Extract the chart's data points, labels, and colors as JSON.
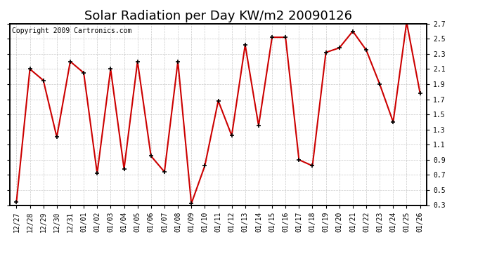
{
  "title": "Solar Radiation per Day KW/m2 20090126",
  "copyright_text": "Copyright 2009 Cartronics.com",
  "dates": [
    "12/27",
    "12/28",
    "12/29",
    "12/30",
    "12/31",
    "01/01",
    "01/02",
    "01/03",
    "01/04",
    "01/05",
    "01/06",
    "01/07",
    "01/08",
    "01/09",
    "01/10",
    "01/11",
    "01/12",
    "01/13",
    "01/14",
    "01/15",
    "01/16",
    "01/17",
    "01/18",
    "01/19",
    "01/20",
    "01/21",
    "01/22",
    "01/23",
    "01/24",
    "01/25",
    "01/26"
  ],
  "values": [
    0.34,
    2.1,
    1.95,
    1.2,
    2.2,
    2.05,
    0.72,
    2.1,
    0.78,
    2.2,
    0.95,
    0.74,
    2.2,
    0.32,
    0.82,
    1.68,
    1.22,
    2.42,
    1.35,
    2.52,
    2.52,
    0.9,
    0.82,
    2.32,
    2.38,
    2.6,
    2.35,
    1.9,
    1.4,
    2.72,
    1.78
  ],
  "line_color": "#cc0000",
  "marker_color": "#000000",
  "marker_size": 5,
  "line_width": 1.5,
  "ylim": [
    0.3,
    2.7
  ],
  "yticks": [
    0.3,
    0.5,
    0.7,
    0.9,
    1.1,
    1.3,
    1.5,
    1.7,
    1.9,
    2.1,
    2.3,
    2.5,
    2.7
  ],
  "background_color": "#ffffff",
  "plot_bg_color": "#ffffff",
  "grid_color": "#bbbbbb",
  "title_fontsize": 13,
  "tick_fontsize": 7,
  "copyright_fontsize": 7
}
